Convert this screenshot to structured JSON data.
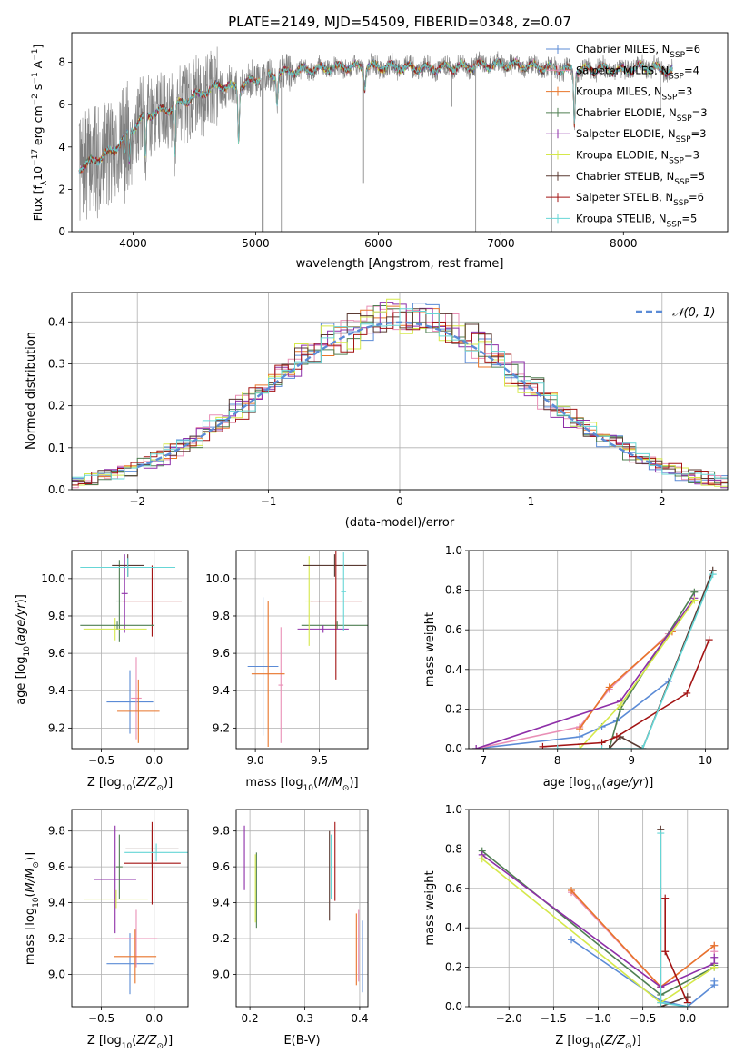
{
  "figure_title": "PLATE=2149, MJD=54509, FIBERID=0348, z=0.07",
  "colors": {
    "Chabrier MILES": "#5b8bd6",
    "Salpeter MILES": "#e98fb6",
    "Kroupa MILES": "#e8742a",
    "Chabrier ELODIE": "#4f7f52",
    "Salpeter ELODIE": "#8e2fa8",
    "Kroupa ELODIE": "#d5e84a",
    "Chabrier STELIB": "#5a3a32",
    "Salpeter STELIB": "#a31414",
    "Kroupa STELIB": "#66d6d6",
    "data": "#808080",
    "normal": "#5b8bd6"
  },
  "chart_data": [
    {
      "id": "spectrum",
      "type": "line",
      "title": "PLATE=2149, MJD=54509, FIBERID=0348, z=0.07",
      "xlabel": "wavelength [Angstrom, rest frame]",
      "ylabel_parts": [
        "Flux [f",
        "λ",
        "10",
        "−17",
        " erg cm",
        "−2",
        " s",
        "−1",
        " A",
        "−1",
        "]"
      ],
      "xlim": [
        3500,
        8850
      ],
      "ylim": [
        0,
        9.4
      ],
      "xticks": [
        4000,
        5000,
        6000,
        7000,
        8000
      ],
      "yticks": [
        0,
        2,
        4,
        6,
        8
      ],
      "grid": false,
      "legend_position": "lower-right",
      "legend": [
        {
          "model": "Chabrier MILES",
          "label": "Chabrier MILES, N",
          "sub": "SSP",
          "suffix": "=6"
        },
        {
          "model": "Salpeter MILES",
          "label": "Salpeter MILES, N",
          "sub": "SSP",
          "suffix": "=4"
        },
        {
          "model": "Kroupa MILES",
          "label": "Kroupa MILES, N",
          "sub": "SSP",
          "suffix": "=3"
        },
        {
          "model": "Chabrier ELODIE",
          "label": "Chabrier ELODIE, N",
          "sub": "SSP",
          "suffix": "=3"
        },
        {
          "model": "Salpeter ELODIE",
          "label": "Salpeter ELODIE, N",
          "sub": "SSP",
          "suffix": "=3"
        },
        {
          "model": "Kroupa ELODIE",
          "label": "Kroupa ELODIE, N",
          "sub": "SSP",
          "suffix": "=3"
        },
        {
          "model": "Chabrier STELIB",
          "label": "Chabrier STELIB, N",
          "sub": "SSP",
          "suffix": "=5"
        },
        {
          "model": "Salpeter STELIB",
          "label": "Salpeter STELIB, N",
          "sub": "SSP",
          "suffix": "=6"
        },
        {
          "model": "Kroupa STELIB",
          "label": "Kroupa STELIB, N",
          "sub": "SSP",
          "suffix": "=5"
        }
      ],
      "continuum": [
        [
          3560,
          3.0
        ],
        [
          3700,
          3.4
        ],
        [
          3850,
          3.9
        ],
        [
          3950,
          4.6
        ],
        [
          4100,
          5.5
        ],
        [
          4300,
          5.8
        ],
        [
          4500,
          6.4
        ],
        [
          4700,
          6.9
        ],
        [
          4850,
          6.8
        ],
        [
          5000,
          7.2
        ],
        [
          5200,
          7.5
        ],
        [
          5500,
          7.7
        ],
        [
          5800,
          7.8
        ],
        [
          6100,
          7.8
        ],
        [
          6400,
          7.7
        ],
        [
          6700,
          7.8
        ],
        [
          7000,
          7.9
        ],
        [
          7300,
          7.8
        ],
        [
          7600,
          7.6
        ],
        [
          7800,
          7.7
        ],
        [
          8000,
          7.6
        ],
        [
          8150,
          7.8
        ],
        [
          8300,
          7.7
        ],
        [
          8400,
          7.6
        ]
      ],
      "absorption_lines": [
        [
          3934,
          0.9
        ],
        [
          3969,
          1.5
        ],
        [
          4101,
          2.0
        ],
        [
          4340,
          2.3
        ],
        [
          4861,
          2.5
        ],
        [
          5175,
          1.3
        ],
        [
          5890,
          1.0
        ],
        [
          7600,
          2.5
        ]
      ],
      "noise_range": [
        3560,
        4700
      ],
      "model_range": [
        3560,
        8400
      ],
      "model_gaps": [
        [
          5040,
          5100
        ],
        [
          6785,
          6800
        ],
        [
          7410,
          7430
        ]
      ],
      "outliers": [
        [
          5052,
          0.0
        ],
        [
          5062,
          0.0
        ],
        [
          5210,
          0.0
        ],
        [
          5880,
          2.3
        ],
        [
          6795,
          0.0
        ],
        [
          7414,
          0.0
        ],
        [
          8302,
          5.7
        ],
        [
          6600,
          5.9
        ]
      ]
    },
    {
      "id": "residuals",
      "type": "step",
      "xlabel": "(data-model)/error",
      "ylabel": "Normed distribution",
      "xlim": [
        -2.5,
        2.5
      ],
      "ylim": [
        0,
        0.47
      ],
      "xticks": [
        -2,
        -1,
        0,
        1,
        2
      ],
      "yticks": [
        0.0,
        0.1,
        0.2,
        0.3,
        0.4
      ],
      "grid": true,
      "legend": [
        {
          "label": "𝒩(0, 1)",
          "style": "dashed"
        }
      ],
      "legend_position": "upper-right",
      "bin_width": 0.1,
      "normal_pdf": {
        "mu": 0,
        "sigma": 1,
        "range": [
          -2.0,
          2.0
        ]
      }
    },
    {
      "id": "age-vs-Z",
      "type": "errorbar",
      "xlabel_main": "Z [log",
      "xlabel_sub": "10",
      "xlabel_rest": "(Z/Z",
      "xlabel_sun": "⊙",
      "xlabel_end": ")]",
      "ylabel": "age  [log",
      "ylabel_sub": "10",
      "ylabel_rest": "(age/yr)]",
      "xlim": [
        -0.78,
        0.32
      ],
      "ylim": [
        9.09,
        10.15
      ],
      "xticks": [
        -0.5,
        0.0
      ],
      "xtick_labels": [
        "−0.5",
        "0.0"
      ],
      "yticks": [
        9.2,
        9.4,
        9.6,
        9.8,
        10.0
      ],
      "grid": true,
      "points": [
        {
          "model": "Chabrier MILES",
          "x": -0.23,
          "xerr": 0.22,
          "y": 9.34,
          "yerr": 0.17
        },
        {
          "model": "Salpeter MILES",
          "x": -0.17,
          "xerr": 0.05,
          "y": 9.36,
          "yerr": 0.22
        },
        {
          "model": "Kroupa MILES",
          "x": -0.15,
          "xerr": 0.2,
          "y": 9.29,
          "yerr": 0.17
        },
        {
          "model": "Chabrier ELODIE",
          "x": -0.33,
          "xerr": 0.03,
          "y": 9.88,
          "yerr": 0.22
        },
        {
          "model": "Salpeter ELODIE",
          "x": -0.28,
          "xerr": 0.03,
          "y": 9.92,
          "yerr": 0.21
        },
        {
          "model": "Kroupa ELODIE",
          "x": -0.37,
          "xerr": 0.3,
          "y": 9.73,
          "yerr": 0.06
        },
        {
          "model": "Chabrier STELIB",
          "x": -0.25,
          "xerr": 0.15,
          "y": 10.07,
          "yerr": 0.06
        },
        {
          "model": "Salpeter STELIB",
          "x": -0.02,
          "xerr": 0.28,
          "y": 9.88,
          "yerr": 0.19
        },
        {
          "model": "Kroupa STELIB",
          "x": -0.25,
          "xerr": 0.45,
          "y": 10.06,
          "yerr": 0.05
        },
        {
          "model": "Chabrier ELODIE",
          "x": -0.35,
          "xerr": 0.35,
          "y": 9.75,
          "yerr": 0.02
        }
      ]
    },
    {
      "id": "age-vs-mass",
      "type": "errorbar",
      "xlabel_main": "mass [log",
      "xlabel_sub": "10",
      "xlabel_rest": "(M/M",
      "xlabel_sun": "⊙",
      "xlabel_end": ")]",
      "xlim": [
        8.85,
        9.88
      ],
      "ylim": [
        9.09,
        10.15
      ],
      "xticks": [
        9.0,
        9.5
      ],
      "xtick_labels": [
        "9.0",
        "9.5"
      ],
      "yticks": [
        9.2,
        9.4,
        9.6,
        9.8,
        10.0
      ],
      "grid": true,
      "points": [
        {
          "model": "Chabrier MILES",
          "x": 9.06,
          "xerr": 0.12,
          "y": 9.53,
          "yerr": 0.37
        },
        {
          "model": "Salpeter MILES",
          "x": 9.2,
          "xerr": 0.02,
          "y": 9.43,
          "yerr": 0.31
        },
        {
          "model": "Kroupa MILES",
          "x": 9.1,
          "xerr": 0.13,
          "y": 9.49,
          "yerr": 0.39
        },
        {
          "model": "Chabrier ELODIE",
          "x": 9.64,
          "xerr": 0.28,
          "y": 9.75,
          "yerr": 0.02
        },
        {
          "model": "Salpeter ELODIE",
          "x": 9.53,
          "xerr": 0.2,
          "y": 9.73,
          "yerr": 0.02
        },
        {
          "model": "Kroupa ELODIE",
          "x": 9.42,
          "xerr": 0.03,
          "y": 9.88,
          "yerr": 0.24
        },
        {
          "model": "Chabrier STELIB",
          "x": 9.62,
          "xerr": 0.25,
          "y": 10.07,
          "yerr": 0.06
        },
        {
          "model": "Salpeter STELIB",
          "x": 9.63,
          "xerr": 0.2,
          "y": 9.88,
          "yerr": 0.42
        },
        {
          "model": "Kroupa STELIB",
          "x": 9.69,
          "xerr": 0.02,
          "y": 9.93,
          "yerr": 0.21
        }
      ]
    },
    {
      "id": "mass-weight-vs-age",
      "type": "line",
      "xlabel": "age  [log",
      "xlabel_sub": "10",
      "xlabel_rest": "(age/yr)]",
      "ylabel": "mass weight",
      "xlim": [
        6.8,
        10.3
      ],
      "ylim": [
        0,
        1.0
      ],
      "xticks": [
        7,
        8,
        9,
        10
      ],
      "yticks": [
        0.0,
        0.2,
        0.4,
        0.6,
        0.8,
        1.0
      ],
      "grid": true,
      "series": [
        {
          "model": "Chabrier MILES",
          "x": [
            6.9,
            8.3,
            8.6,
            8.8,
            9.5
          ],
          "y": [
            0.0,
            0.06,
            0.11,
            0.14,
            0.34
          ]
        },
        {
          "model": "Salpeter MILES",
          "x": [
            6.9,
            8.3,
            8.7,
            9.5
          ],
          "y": [
            0.0,
            0.11,
            0.3,
            0.58
          ]
        },
        {
          "model": "Kroupa MILES",
          "x": [
            8.3,
            8.7,
            9.55
          ],
          "y": [
            0.1,
            0.31,
            0.59
          ]
        },
        {
          "model": "Chabrier ELODIE",
          "x": [
            8.7,
            8.85,
            9.85
          ],
          "y": [
            0.0,
            0.2,
            0.79
          ]
        },
        {
          "model": "Salpeter ELODIE",
          "x": [
            6.9,
            8.85,
            9.85
          ],
          "y": [
            0.0,
            0.24,
            0.76
          ]
        },
        {
          "model": "Kroupa ELODIE",
          "x": [
            8.3,
            8.85,
            9.85
          ],
          "y": [
            0.0,
            0.22,
            0.75
          ]
        },
        {
          "model": "Chabrier STELIB",
          "x": [
            8.7,
            8.85,
            9.15,
            10.1
          ],
          "y": [
            0.0,
            0.06,
            0.0,
            0.9
          ]
        },
        {
          "model": "Salpeter STELIB",
          "x": [
            7.8,
            8.6,
            8.8,
            9.75,
            10.05
          ],
          "y": [
            0.01,
            0.03,
            0.06,
            0.28,
            0.55
          ]
        },
        {
          "model": "Kroupa STELIB",
          "x": [
            8.0,
            8.6,
            9.15,
            10.1
          ],
          "y": [
            0.0,
            0.0,
            0.0,
            0.88
          ]
        }
      ]
    },
    {
      "id": "mass-vs-Z",
      "type": "errorbar",
      "xlabel_main": "Z [log",
      "xlabel_sub": "10",
      "xlabel_rest": "(Z/Z",
      "xlabel_sun": "⊙",
      "xlabel_end": ")]",
      "ylabel": "mass [log",
      "ylabel_sub": "10",
      "ylabel_rest": "(M/M",
      "ylabel_sun": "⊙",
      "ylabel_end": ")]",
      "xlim": [
        -0.78,
        0.32
      ],
      "ylim": [
        8.82,
        9.92
      ],
      "xticks": [
        -0.5,
        0.0
      ],
      "xtick_labels": [
        "−0.5",
        "0.0"
      ],
      "yticks": [
        9.0,
        9.2,
        9.4,
        9.6,
        9.8
      ],
      "grid": true,
      "points": [
        {
          "model": "Chabrier MILES",
          "x": -0.23,
          "xerr": 0.22,
          "y": 9.06,
          "yerr": 0.17
        },
        {
          "model": "Salpeter MILES",
          "x": -0.17,
          "xerr": 0.2,
          "y": 9.2,
          "yerr": 0.16
        },
        {
          "model": "Kroupa MILES",
          "x": -0.18,
          "xerr": 0.2,
          "y": 9.1,
          "yerr": 0.15
        },
        {
          "model": "Chabrier ELODIE",
          "x": -0.33,
          "xerr": 0.03,
          "y": 9.6,
          "yerr": 0.18
        },
        {
          "model": "Salpeter ELODIE",
          "x": -0.37,
          "xerr": 0.2,
          "y": 9.53,
          "yerr": 0.3
        },
        {
          "model": "Kroupa ELODIE",
          "x": -0.36,
          "xerr": 0.3,
          "y": 9.42,
          "yerr": 0.05
        },
        {
          "model": "Chabrier STELIB",
          "x": -0.02,
          "xerr": 0.25,
          "y": 9.7,
          "yerr": 0.1
        },
        {
          "model": "Salpeter STELIB",
          "x": -0.02,
          "xerr": 0.27,
          "y": 9.62,
          "yerr": 0.23
        },
        {
          "model": "Kroupa STELIB",
          "x": 0.02,
          "xerr": 0.3,
          "y": 9.68,
          "yerr": 0.05
        }
      ]
    },
    {
      "id": "mass-vs-ebv",
      "type": "errorbar",
      "xlabel": "E(B-V)",
      "xlim": [
        0.175,
        0.415
      ],
      "ylim": [
        8.82,
        9.92
      ],
      "xticks": [
        0.2,
        0.3,
        0.4
      ],
      "xtick_labels": [
        "0.2",
        "0.3",
        "0.4"
      ],
      "yticks": [
        9.0,
        9.2,
        9.4,
        9.6,
        9.8
      ],
      "grid": true,
      "points": [
        {
          "model": "Chabrier MILES",
          "x": 0.405,
          "xerr": 0,
          "y": 9.1,
          "yerr": 0.2
        },
        {
          "model": "Salpeter MILES",
          "x": 0.398,
          "xerr": 0,
          "y": 9.16,
          "yerr": 0.2
        },
        {
          "model": "Kroupa MILES",
          "x": 0.394,
          "xerr": 0,
          "y": 9.14,
          "yerr": 0.2
        },
        {
          "model": "Chabrier ELODIE",
          "x": 0.212,
          "xerr": 0,
          "y": 9.47,
          "yerr": 0.21
        },
        {
          "model": "Salpeter ELODIE",
          "x": 0.19,
          "xerr": 0,
          "y": 9.65,
          "yerr": 0.18
        },
        {
          "model": "Kroupa ELODIE",
          "x": 0.21,
          "xerr": 0,
          "y": 9.48,
          "yerr": 0.19
        },
        {
          "model": "Chabrier STELIB",
          "x": 0.345,
          "xerr": 0,
          "y": 9.55,
          "yerr": 0.25
        },
        {
          "model": "Salpeter STELIB",
          "x": 0.355,
          "xerr": 0,
          "y": 9.63,
          "yerr": 0.22
        },
        {
          "model": "Kroupa STELIB",
          "x": 0.348,
          "xerr": 0,
          "y": 9.6,
          "yerr": 0.18
        }
      ]
    },
    {
      "id": "mass-weight-vs-Z",
      "type": "line",
      "xlabel_main": "Z [log",
      "xlabel_sub": "10",
      "xlabel_rest": "(Z/Z",
      "xlabel_sun": "⊙",
      "xlabel_end": ")]",
      "ylabel": "mass weight",
      "xlim": [
        -2.45,
        0.45
      ],
      "ylim": [
        0,
        1.0
      ],
      "xticks": [
        -2.0,
        -1.5,
        -1.0,
        -0.5,
        0.0
      ],
      "xtick_labels": [
        "−2.0",
        "−1.5",
        "−1.0",
        "−0.5",
        "0.0"
      ],
      "yticks": [
        0.0,
        0.2,
        0.4,
        0.6,
        0.8,
        1.0
      ],
      "grid": true,
      "series": [
        {
          "model": "Chabrier MILES",
          "x": [
            -1.3,
            -0.3,
            0.0,
            0.3,
            0.3
          ],
          "y": [
            0.34,
            0.03,
            0.0,
            0.11,
            0.13
          ]
        },
        {
          "model": "Salpeter MILES",
          "x": [
            -1.3,
            -0.3,
            0.3,
            0.3
          ],
          "y": [
            0.58,
            0.1,
            0.31,
            0.28
          ]
        },
        {
          "model": "Kroupa MILES",
          "x": [
            -1.3,
            -0.3,
            0.3
          ],
          "y": [
            0.59,
            0.1,
            0.31
          ]
        },
        {
          "model": "Chabrier ELODIE",
          "x": [
            -2.3,
            -0.3,
            0.3,
            0.3
          ],
          "y": [
            0.79,
            0.06,
            0.2,
            0.21
          ]
        },
        {
          "model": "Salpeter ELODIE",
          "x": [
            -2.3,
            -0.3,
            0.3,
            0.3
          ],
          "y": [
            0.77,
            0.1,
            0.22,
            0.25
          ]
        },
        {
          "model": "Kroupa ELODIE",
          "x": [
            -2.3,
            -0.3,
            0.3
          ],
          "y": [
            0.75,
            0.02,
            0.2
          ]
        },
        {
          "model": "Chabrier STELIB",
          "x": [
            -0.3,
            -0.3,
            0.0
          ],
          "y": [
            0.9,
            0.0,
            0.05
          ]
        },
        {
          "model": "Salpeter STELIB",
          "x": [
            -0.25,
            -0.25,
            0.0
          ],
          "y": [
            0.55,
            0.28,
            0.02
          ]
        },
        {
          "model": "Kroupa STELIB",
          "x": [
            -0.3,
            -0.3,
            0.0
          ],
          "y": [
            0.88,
            0.02,
            0.0
          ]
        }
      ]
    }
  ]
}
